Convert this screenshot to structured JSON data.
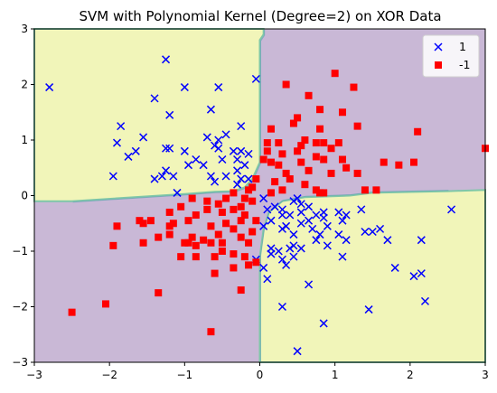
{
  "chart_data": {
    "type": "scatter",
    "title": "SVM with Polynomial Kernel (Degree=2) on XOR Data",
    "xlabel": "",
    "ylabel": "",
    "xlim": [
      -3,
      3
    ],
    "ylim": [
      -3,
      3
    ],
    "xticks": [
      "−3",
      "−2",
      "−1",
      "0",
      "1",
      "2",
      "3"
    ],
    "yticks": [
      "−3",
      "−2",
      "−1",
      "0",
      "1",
      "2",
      "3"
    ],
    "grid": false,
    "legend_position": "top-right",
    "regions": [
      {
        "class": "1",
        "color": "#f1f5b9",
        "quadrants": [
          "top-left",
          "bottom-right"
        ]
      },
      {
        "class": "-1",
        "color": "#c9b8d6",
        "quadrants": [
          "top-right",
          "bottom-left"
        ]
      }
    ],
    "boundary_colors": [
      "#7fc7a8",
      "#5a9fb3"
    ],
    "series": [
      {
        "name": "1",
        "marker": "x",
        "color": "#0000ff",
        "points": [
          [
            -2.8,
            1.95
          ],
          [
            -1.25,
            2.45
          ],
          [
            -1.0,
            1.95
          ],
          [
            -0.55,
            1.95
          ],
          [
            -0.05,
            2.1
          ],
          [
            -1.4,
            1.75
          ],
          [
            -0.65,
            1.55
          ],
          [
            -1.2,
            1.45
          ],
          [
            -1.85,
            1.25
          ],
          [
            -0.25,
            1.25
          ],
          [
            -1.55,
            1.05
          ],
          [
            -0.7,
            1.05
          ],
          [
            -0.55,
            1.0
          ],
          [
            -0.45,
            1.1
          ],
          [
            -1.9,
            0.95
          ],
          [
            -1.65,
            0.8
          ],
          [
            -1.75,
            0.7
          ],
          [
            -1.25,
            0.85
          ],
          [
            -1.2,
            0.85
          ],
          [
            -1.0,
            0.8
          ],
          [
            -0.6,
            0.9
          ],
          [
            -0.55,
            0.85
          ],
          [
            -0.35,
            0.8
          ],
          [
            -0.25,
            0.8
          ],
          [
            -0.15,
            0.75
          ],
          [
            -0.3,
            0.65
          ],
          [
            -0.5,
            0.65
          ],
          [
            -0.85,
            0.65
          ],
          [
            -0.95,
            0.55
          ],
          [
            -0.75,
            0.55
          ],
          [
            -0.2,
            0.55
          ],
          [
            -0.3,
            0.45
          ],
          [
            -1.25,
            0.45
          ],
          [
            -0.65,
            0.35
          ],
          [
            -0.45,
            0.35
          ],
          [
            -1.95,
            0.35
          ],
          [
            -1.4,
            0.3
          ],
          [
            -1.3,
            0.35
          ],
          [
            -1.15,
            0.35
          ],
          [
            -0.25,
            0.3
          ],
          [
            -0.15,
            0.3
          ],
          [
            -0.6,
            0.25
          ],
          [
            -0.3,
            0.2
          ],
          [
            -1.1,
            0.05
          ],
          [
            0.05,
            -0.05
          ],
          [
            0.1,
            -0.25
          ],
          [
            0.2,
            -0.2
          ],
          [
            0.3,
            -0.25
          ],
          [
            0.45,
            -0.1
          ],
          [
            0.5,
            -0.05
          ],
          [
            0.55,
            -0.15
          ],
          [
            0.65,
            -0.2
          ],
          [
            0.3,
            -0.35
          ],
          [
            0.4,
            -0.35
          ],
          [
            0.55,
            -0.3
          ],
          [
            0.75,
            -0.35
          ],
          [
            0.85,
            -0.3
          ],
          [
            1.05,
            -0.3
          ],
          [
            0.15,
            -0.45
          ],
          [
            0.05,
            -0.55
          ],
          [
            0.35,
            -0.55
          ],
          [
            0.55,
            -0.5
          ],
          [
            0.65,
            -0.45
          ],
          [
            0.85,
            -0.4
          ],
          [
            0.7,
            -0.6
          ],
          [
            0.9,
            -0.55
          ],
          [
            1.1,
            -0.45
          ],
          [
            1.35,
            -0.25
          ],
          [
            1.4,
            -0.65
          ],
          [
            1.6,
            -0.6
          ],
          [
            0.3,
            -0.6
          ],
          [
            0.45,
            -0.7
          ],
          [
            0.8,
            -0.7
          ],
          [
            1.05,
            -0.7
          ],
          [
            1.15,
            -0.8
          ],
          [
            0.75,
            -0.8
          ],
          [
            0.9,
            -0.9
          ],
          [
            0.45,
            -0.9
          ],
          [
            0.4,
            -0.95
          ],
          [
            0.55,
            -0.95
          ],
          [
            0.25,
            -1.0
          ],
          [
            0.15,
            -1.05
          ],
          [
            0.15,
            -0.95
          ],
          [
            1.7,
            -0.8
          ],
          [
            0.3,
            -1.15
          ],
          [
            0.45,
            -1.1
          ],
          [
            0.35,
            -1.25
          ],
          [
            -0.05,
            -1.15
          ],
          [
            0.05,
            -1.3
          ],
          [
            0.1,
            -1.5
          ],
          [
            0.65,
            -1.6
          ],
          [
            0.3,
            -2.0
          ],
          [
            0.85,
            -2.3
          ],
          [
            0.5,
            -2.8
          ],
          [
            1.45,
            -2.05
          ],
          [
            1.8,
            -1.3
          ],
          [
            2.15,
            -0.8
          ],
          [
            2.05,
            -1.45
          ],
          [
            2.15,
            -1.4
          ],
          [
            2.2,
            -1.9
          ],
          [
            2.55,
            -0.25
          ],
          [
            1.15,
            -0.35
          ],
          [
            1.5,
            -0.65
          ],
          [
            1.1,
            -1.1
          ]
        ]
      },
      {
        "name": "-1",
        "marker": "s",
        "color": "#ff0000",
        "points": [
          [
            1.0,
            2.2
          ],
          [
            1.25,
            1.95
          ],
          [
            0.35,
            2.0
          ],
          [
            0.5,
            1.4
          ],
          [
            0.65,
            1.8
          ],
          [
            0.8,
            1.55
          ],
          [
            1.1,
            1.5
          ],
          [
            0.15,
            1.2
          ],
          [
            0.45,
            1.3
          ],
          [
            0.8,
            1.2
          ],
          [
            1.3,
            1.25
          ],
          [
            2.1,
            1.15
          ],
          [
            0.1,
            0.95
          ],
          [
            0.25,
            0.95
          ],
          [
            0.55,
            0.9
          ],
          [
            0.6,
            1.0
          ],
          [
            0.75,
            0.95
          ],
          [
            0.85,
            0.95
          ],
          [
            0.95,
            0.85
          ],
          [
            1.05,
            0.95
          ],
          [
            0.1,
            0.8
          ],
          [
            0.3,
            0.75
          ],
          [
            0.5,
            0.8
          ],
          [
            0.75,
            0.7
          ],
          [
            0.85,
            0.65
          ],
          [
            0.05,
            0.65
          ],
          [
            0.15,
            0.6
          ],
          [
            0.25,
            0.55
          ],
          [
            0.55,
            0.6
          ],
          [
            1.1,
            0.65
          ],
          [
            1.15,
            0.5
          ],
          [
            1.3,
            0.4
          ],
          [
            0.35,
            0.4
          ],
          [
            0.65,
            0.45
          ],
          [
            0.95,
            0.4
          ],
          [
            1.65,
            0.6
          ],
          [
            1.85,
            0.55
          ],
          [
            2.05,
            0.6
          ],
          [
            3.0,
            0.85
          ],
          [
            1.4,
            0.1
          ],
          [
            1.55,
            0.1
          ],
          [
            0.2,
            0.25
          ],
          [
            0.4,
            0.3
          ],
          [
            0.6,
            0.2
          ],
          [
            0.75,
            0.1
          ],
          [
            0.8,
            0.05
          ],
          [
            0.85,
            0.05
          ],
          [
            0.15,
            0.05
          ],
          [
            0.3,
            0.1
          ],
          [
            -0.1,
            0.15
          ],
          [
            -0.05,
            0.3
          ],
          [
            -0.15,
            0.1
          ],
          [
            -0.35,
            0.05
          ],
          [
            -0.2,
            -0.05
          ],
          [
            -0.1,
            -0.1
          ],
          [
            -0.25,
            -0.2
          ],
          [
            -0.45,
            -0.05
          ],
          [
            -0.55,
            -0.15
          ],
          [
            -0.7,
            -0.1
          ],
          [
            -0.9,
            -0.05
          ],
          [
            -0.2,
            -0.35
          ],
          [
            -0.35,
            -0.25
          ],
          [
            -0.5,
            -0.3
          ],
          [
            -0.7,
            -0.25
          ],
          [
            -0.85,
            -0.35
          ],
          [
            -1.05,
            -0.2
          ],
          [
            -1.2,
            -0.3
          ],
          [
            -0.05,
            -0.45
          ],
          [
            -0.25,
            -0.45
          ],
          [
            -0.45,
            -0.5
          ],
          [
            -0.65,
            -0.55
          ],
          [
            -0.95,
            -0.45
          ],
          [
            -1.15,
            -0.5
          ],
          [
            -1.45,
            -0.45
          ],
          [
            -1.6,
            -0.45
          ],
          [
            -1.55,
            -0.5
          ],
          [
            -0.1,
            -0.65
          ],
          [
            -0.35,
            -0.6
          ],
          [
            -0.55,
            -0.7
          ],
          [
            -0.75,
            -0.8
          ],
          [
            -0.9,
            -0.75
          ],
          [
            -1.2,
            -0.55
          ],
          [
            -1.2,
            -0.7
          ],
          [
            -1.35,
            -0.75
          ],
          [
            -1.9,
            -0.55
          ],
          [
            -0.15,
            -0.85
          ],
          [
            -0.25,
            -0.75
          ],
          [
            -0.5,
            -0.85
          ],
          [
            -0.65,
            -0.85
          ],
          [
            -0.85,
            -0.9
          ],
          [
            -0.95,
            -0.85
          ],
          [
            -1.0,
            -0.85
          ],
          [
            -1.55,
            -0.85
          ],
          [
            -1.95,
            -0.9
          ],
          [
            -0.35,
            -1.05
          ],
          [
            -0.2,
            -1.1
          ],
          [
            -0.05,
            -1.2
          ],
          [
            -0.5,
            -1.0
          ],
          [
            -0.6,
            -1.1
          ],
          [
            -0.85,
            -1.1
          ],
          [
            -1.05,
            -1.1
          ],
          [
            -0.35,
            -1.3
          ],
          [
            -0.15,
            -1.25
          ],
          [
            -0.6,
            -1.4
          ],
          [
            -0.25,
            -1.7
          ],
          [
            -1.35,
            -1.75
          ],
          [
            -2.05,
            -1.95
          ],
          [
            -2.5,
            -2.1
          ],
          [
            -0.65,
            -2.45
          ]
        ]
      }
    ]
  }
}
